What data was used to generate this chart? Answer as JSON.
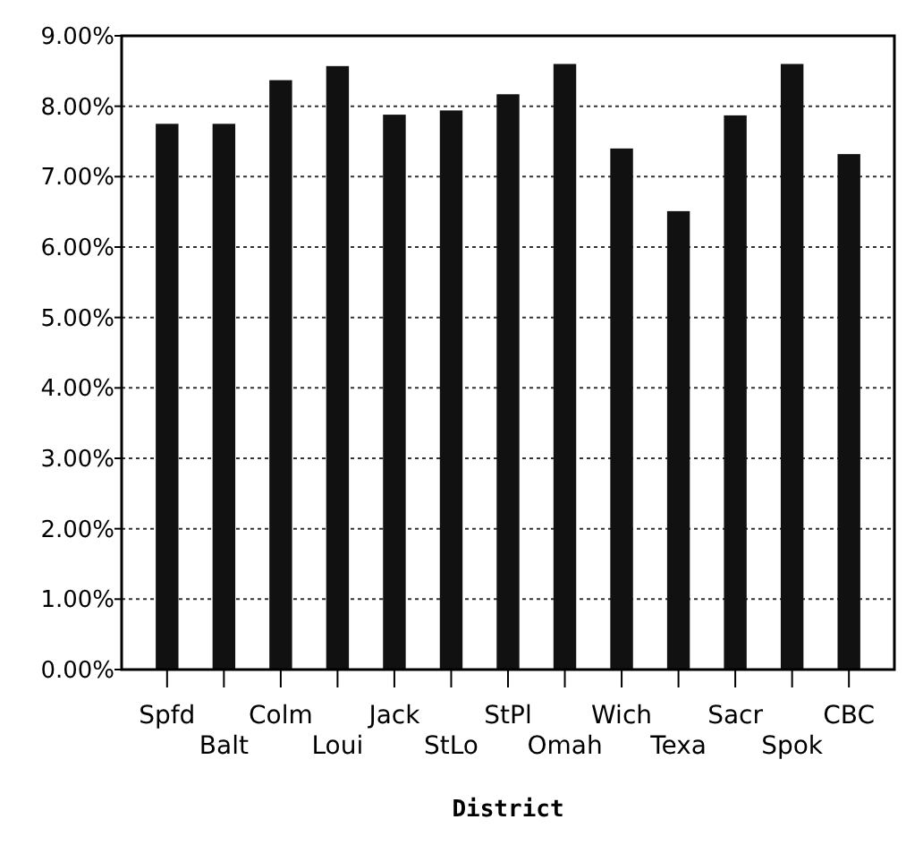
{
  "chart_data": {
    "type": "bar",
    "xlabel": "District",
    "categories": [
      "Spfd",
      "Balt",
      "Colm",
      "Loui",
      "Jack",
      "StLo",
      "StPl",
      "Omah",
      "Wich",
      "Texa",
      "Sacr",
      "Spok",
      "CBC"
    ],
    "values": [
      7.75,
      7.75,
      8.37,
      8.57,
      7.88,
      7.94,
      8.17,
      8.6,
      7.4,
      6.51,
      7.87,
      8.6,
      7.32
    ],
    "color": "#111111",
    "ylim": [
      0,
      9
    ],
    "yticks": [
      {
        "value": 0,
        "label": "0.00%"
      },
      {
        "value": 1,
        "label": "1.00%"
      },
      {
        "value": 2,
        "label": "2.00%"
      },
      {
        "value": 3,
        "label": "3.00%"
      },
      {
        "value": 4,
        "label": "4.00%"
      },
      {
        "value": 5,
        "label": "5.00%"
      },
      {
        "value": 6,
        "label": "6.00%"
      },
      {
        "value": 7,
        "label": "7.00%"
      },
      {
        "value": 8,
        "label": "8.00%"
      },
      {
        "value": 9,
        "label": "9.00%"
      }
    ],
    "grid": "y"
  }
}
